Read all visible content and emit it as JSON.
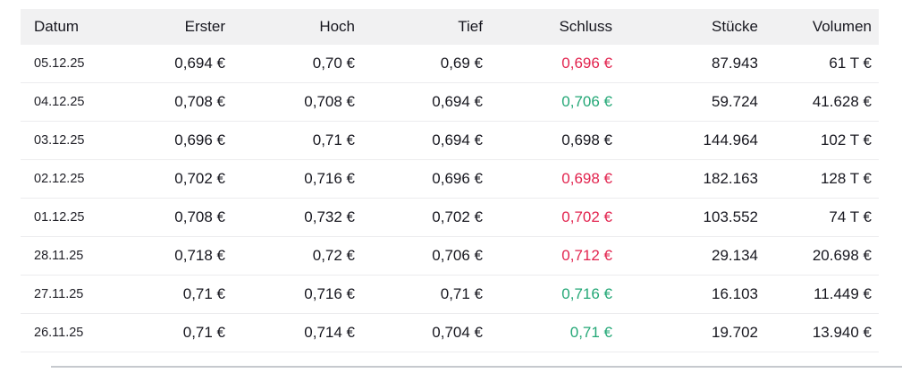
{
  "table": {
    "columns": [
      {
        "key": "datum",
        "label": "Datum",
        "align": "left"
      },
      {
        "key": "erster",
        "label": "Erster",
        "align": "right"
      },
      {
        "key": "hoch",
        "label": "Hoch",
        "align": "right"
      },
      {
        "key": "tief",
        "label": "Tief",
        "align": "right"
      },
      {
        "key": "schluss",
        "label": "Schluss",
        "align": "right"
      },
      {
        "key": "stuecke",
        "label": "Stücke",
        "align": "right"
      },
      {
        "key": "volumen",
        "label": "Volumen",
        "align": "right"
      }
    ],
    "rows": [
      {
        "datum": "05.12.25",
        "erster": "0,694 €",
        "hoch": "0,70 €",
        "tief": "0,69 €",
        "schluss": "0,696 €",
        "schluss_trend": "down",
        "stuecke": "87.943",
        "volumen": "61 T €"
      },
      {
        "datum": "04.12.25",
        "erster": "0,708 €",
        "hoch": "0,708 €",
        "tief": "0,694 €",
        "schluss": "0,706 €",
        "schluss_trend": "up",
        "stuecke": "59.724",
        "volumen": "41.628 €"
      },
      {
        "datum": "03.12.25",
        "erster": "0,696 €",
        "hoch": "0,71 €",
        "tief": "0,694 €",
        "schluss": "0,698 €",
        "schluss_trend": "neutral",
        "stuecke": "144.964",
        "volumen": "102 T €"
      },
      {
        "datum": "02.12.25",
        "erster": "0,702 €",
        "hoch": "0,716 €",
        "tief": "0,696 €",
        "schluss": "0,698 €",
        "schluss_trend": "down",
        "stuecke": "182.163",
        "volumen": "128 T €"
      },
      {
        "datum": "01.12.25",
        "erster": "0,708 €",
        "hoch": "0,732 €",
        "tief": "0,702 €",
        "schluss": "0,702 €",
        "schluss_trend": "down",
        "stuecke": "103.552",
        "volumen": "74 T €"
      },
      {
        "datum": "28.11.25",
        "erster": "0,718 €",
        "hoch": "0,72 €",
        "tief": "0,706 €",
        "schluss": "0,712 €",
        "schluss_trend": "down",
        "stuecke": "29.134",
        "volumen": "20.698 €"
      },
      {
        "datum": "27.11.25",
        "erster": "0,71 €",
        "hoch": "0,716 €",
        "tief": "0,71 €",
        "schluss": "0,716 €",
        "schluss_trend": "up",
        "stuecke": "16.103",
        "volumen": "11.449 €"
      },
      {
        "datum": "26.11.25",
        "erster": "0,71 €",
        "hoch": "0,714 €",
        "tief": "0,704 €",
        "schluss": "0,71 €",
        "schluss_trend": "up",
        "stuecke": "19.702",
        "volumen": "13.940 €"
      }
    ],
    "colors": {
      "up": "#23a776",
      "down": "#e2234e",
      "neutral": "#17171f",
      "header_bg": "#f1f1f2",
      "divider": "#ececee",
      "text": "#17171f"
    }
  }
}
